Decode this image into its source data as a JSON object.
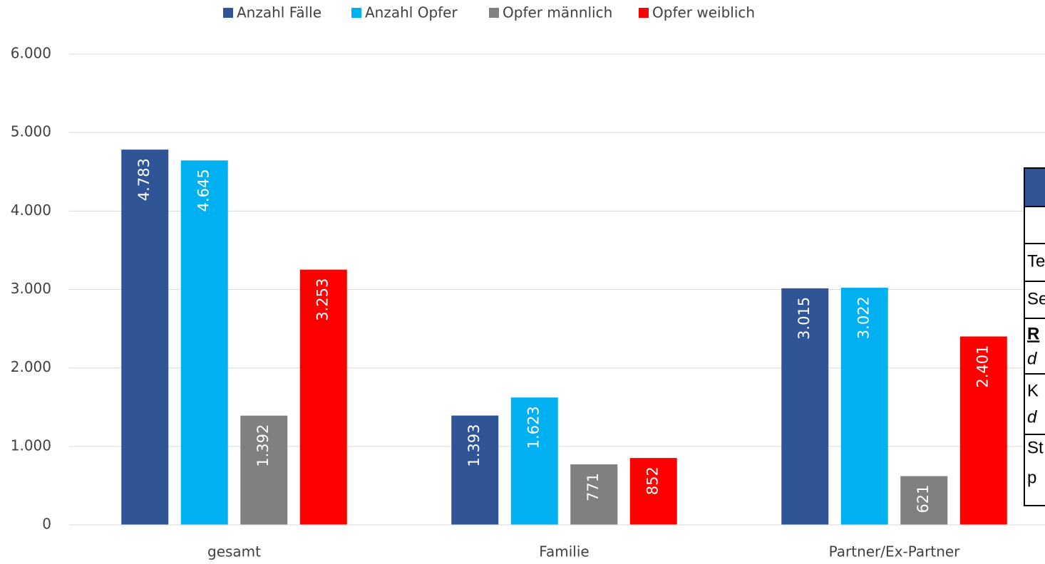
{
  "chart_data": {
    "type": "bar",
    "categories": [
      "gesamt",
      "Familie",
      "Partner/Ex-Partner"
    ],
    "series": [
      {
        "name": "Anzahl Fälle",
        "color": "#2f5597",
        "values": [
          4783,
          1393,
          3015
        ],
        "value_labels": [
          "4.783",
          "1.393",
          "3.015"
        ]
      },
      {
        "name": "Anzahl Opfer",
        "color": "#00b0f0",
        "values": [
          4645,
          1623,
          3022
        ],
        "value_labels": [
          "4.645",
          "1.623",
          "3.022"
        ]
      },
      {
        "name": "Opfer männlich",
        "color": "#808080",
        "values": [
          1392,
          771,
          621
        ],
        "value_labels": [
          "1.392",
          "771",
          "621"
        ]
      },
      {
        "name": "Opfer weiblich",
        "color": "#ff0000",
        "values": [
          3253,
          852,
          2401
        ],
        "value_labels": [
          "3.253",
          "852",
          "2.401"
        ]
      }
    ],
    "ylim": [
      0,
      6000
    ],
    "yticks": [
      0,
      {
        "value": 1000,
        "label": "1.000"
      },
      {
        "value": 2000,
        "label": "2.000"
      },
      {
        "value": 3000,
        "label": "3.000"
      },
      {
        "value": 4000,
        "label": "4.000"
      },
      {
        "value": 5000,
        "label": "5.000"
      },
      {
        "value": 6000,
        "label": "6.000"
      }
    ],
    "grid": true,
    "legend": "top"
  },
  "table": {
    "rows": [
      "Te",
      "Se",
      "R",
      "d",
      "K",
      "d",
      "St",
      "p"
    ]
  }
}
